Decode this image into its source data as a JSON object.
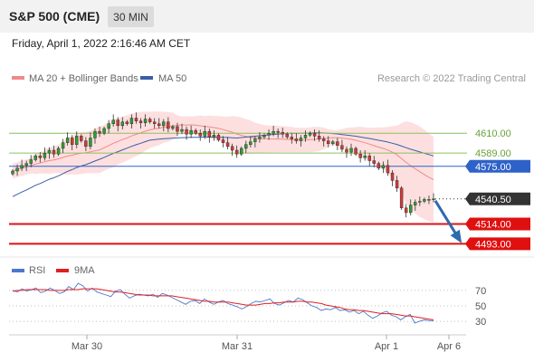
{
  "header": {
    "title": "S&P 500 (CME)",
    "timeframe": "30 MIN"
  },
  "datetime": "Friday, April 1, 2022 2:16:46 AM CET",
  "legend": {
    "bollinger": "MA 20 + Bollinger Bands",
    "ma50": "MA 50",
    "copyright": "Research © 2022 Trading Central"
  },
  "rsi_legend": {
    "rsi": "RSI",
    "ma": "9MA"
  },
  "colors": {
    "candle_up": "#2e9e2e",
    "candle_down": "#d03a3a",
    "ma20": "#f08a8a",
    "band": "#fcd4d4",
    "ma50": "#3a5ea8",
    "resistance": "#8cc060",
    "pivot": "#2f62c8",
    "support": "#e01010",
    "last_price": "#333333",
    "arrow": "#2d6aae",
    "rsi": "#4a78d0",
    "rsi_ma": "#e02020"
  },
  "chart_data": {
    "type": "candlestick",
    "y_range": [
      4480,
      4660
    ],
    "levels": [
      {
        "value": 4610.0,
        "label": "4610.00",
        "kind": "resistance"
      },
      {
        "value": 4589.0,
        "label": "4589.00",
        "kind": "resistance"
      },
      {
        "value": 4575.0,
        "label": "4575.00",
        "kind": "pivot"
      },
      {
        "value": 4540.5,
        "label": "4540.50",
        "kind": "last"
      },
      {
        "value": 4514.0,
        "label": "4514.00",
        "kind": "support"
      },
      {
        "value": 4493.0,
        "label": "4493.00",
        "kind": "support"
      }
    ],
    "x_labels": [
      "Mar 30",
      "Mar 31",
      "Apr 1",
      "Apr 6"
    ],
    "closes": [
      4570,
      4573,
      4576,
      4578,
      4582,
      4586,
      4584,
      4589,
      4592,
      4588,
      4594,
      4600,
      4605,
      4598,
      4607,
      4602,
      4596,
      4605,
      4612,
      4610,
      4615,
      4620,
      4624,
      4618,
      4622,
      4620,
      4626,
      4623,
      4621,
      4625,
      4622,
      4620,
      4618,
      4622,
      4615,
      4617,
      4612,
      4614,
      4609,
      4613,
      4610,
      4607,
      4612,
      4606,
      4608,
      4603,
      4600,
      4596,
      4592,
      4588,
      4594,
      4598,
      4601,
      4604,
      4606,
      4608,
      4610,
      4612,
      4611,
      4609,
      4606,
      4604,
      4602,
      4605,
      4608,
      4610,
      4607,
      4604,
      4602,
      4599,
      4601,
      4597,
      4593,
      4590,
      4594,
      4588,
      4584,
      4586,
      4581,
      4578,
      4573,
      4576,
      4568,
      4560,
      4552,
      4531,
      4526,
      4534,
      4537,
      4538,
      4540,
      4540,
      4540.5
    ],
    "rsi": {
      "levels": [
        70,
        50,
        30
      ],
      "range": [
        15,
        85
      ],
      "values": [
        70,
        68,
        72,
        69,
        71,
        73,
        67,
        69,
        73,
        70,
        66,
        68,
        75,
        71,
        79,
        76,
        69,
        73,
        68,
        66,
        64,
        62,
        69,
        71,
        65,
        60,
        63,
        65,
        64,
        63,
        65,
        61,
        66,
        64,
        61,
        58,
        55,
        52,
        56,
        57,
        53,
        59,
        55,
        52,
        55,
        57,
        53,
        51,
        49,
        46,
        49,
        53,
        56,
        55,
        57,
        59,
        53,
        51,
        54,
        57,
        55,
        60,
        58,
        54,
        50,
        48,
        44,
        46,
        45,
        48,
        44,
        45,
        42,
        44,
        40,
        43,
        38,
        34,
        37,
        41,
        43,
        38,
        36,
        32,
        36,
        39,
        28,
        30,
        32,
        31,
        31
      ],
      "ma_values": [
        69,
        70,
        70,
        71,
        71,
        71,
        71,
        71,
        70,
        70,
        70,
        70,
        71,
        71,
        71,
        72,
        72,
        72,
        72,
        71,
        70,
        69,
        68,
        68,
        67,
        66,
        65,
        64,
        64,
        64,
        63,
        63,
        63,
        63,
        63,
        62,
        61,
        60,
        59,
        58,
        57,
        56,
        56,
        55,
        55,
        55,
        55,
        54,
        53,
        52,
        51,
        51,
        51,
        52,
        53,
        53,
        54,
        54,
        55,
        55,
        55,
        56,
        56,
        55,
        55,
        54,
        53,
        51,
        50,
        49,
        48,
        46,
        45,
        45,
        44,
        44,
        43,
        42,
        41,
        40,
        40,
        40,
        39,
        38,
        37,
        37,
        36,
        35,
        34,
        33,
        32
      ]
    }
  }
}
